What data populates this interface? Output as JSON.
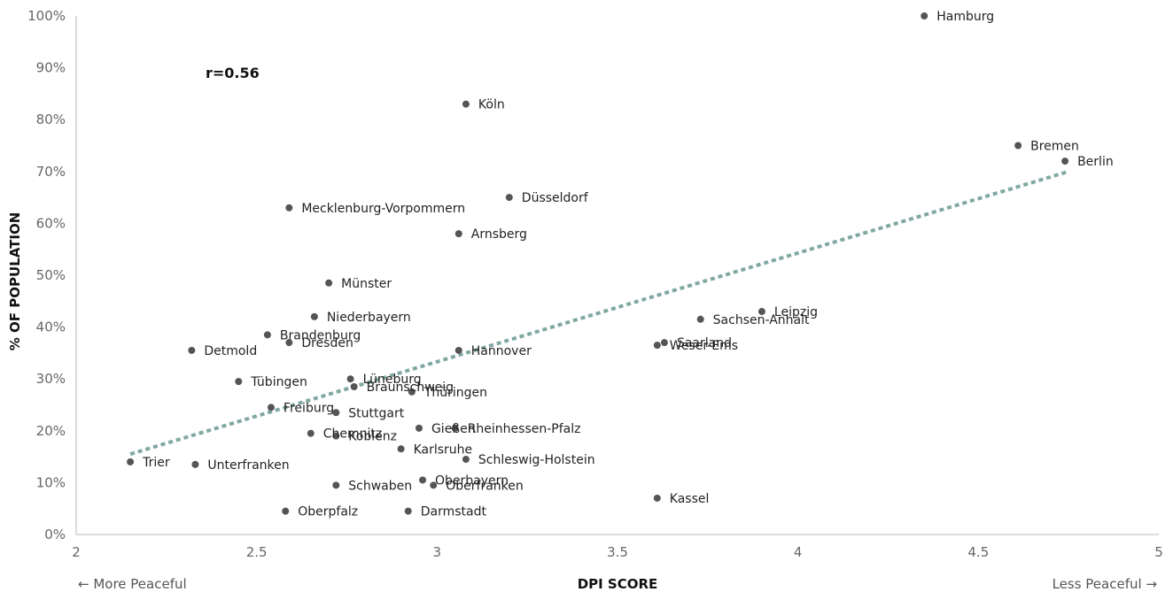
{
  "chart_data": {
    "type": "scatter",
    "xlabel": "DPI SCORE",
    "ylabel": "% OF POPULATION",
    "xlim": [
      2,
      5
    ],
    "ylim": [
      0,
      100
    ],
    "x_ticks": [
      "2",
      "2.5",
      "3",
      "3.5",
      "4",
      "4.5",
      "5"
    ],
    "y_ticks": [
      "0%",
      "10%",
      "20%",
      "30%",
      "40%",
      "50%",
      "60%",
      "70%",
      "80%",
      "90%",
      "100%"
    ],
    "annotation": "r=0.56",
    "left_direction_label": "← More Peaceful",
    "right_direction_label": "Less Peaceful →",
    "point_color": "#555555",
    "trend_color": "#7fa8a3",
    "grid": false,
    "trendline": {
      "x": [
        2.15,
        4.75
      ],
      "y": [
        15.5,
        70
      ]
    },
    "points": [
      {
        "label": "Hamburg",
        "x": 4.35,
        "y": 100
      },
      {
        "label": "Köln",
        "x": 3.08,
        "y": 83
      },
      {
        "label": "Bremen",
        "x": 4.61,
        "y": 75
      },
      {
        "label": "Berlin",
        "x": 4.74,
        "y": 72
      },
      {
        "label": "Düsseldorf",
        "x": 3.2,
        "y": 65
      },
      {
        "label": "Mecklenburg-Vorpommern",
        "x": 2.59,
        "y": 63
      },
      {
        "label": "Arnsberg",
        "x": 3.06,
        "y": 58
      },
      {
        "label": "Münster",
        "x": 2.7,
        "y": 48.5
      },
      {
        "label": "Leipzig",
        "x": 3.9,
        "y": 43
      },
      {
        "label": "Niederbayern",
        "x": 2.66,
        "y": 42
      },
      {
        "label": "Sachsen-Anhalt",
        "x": 3.73,
        "y": 41.5
      },
      {
        "label": "Brandenburg",
        "x": 2.53,
        "y": 38.5
      },
      {
        "label": "Saarland",
        "x": 3.63,
        "y": 37
      },
      {
        "label": "Dresden",
        "x": 2.59,
        "y": 37
      },
      {
        "label": "Weser-Ems",
        "x": 3.61,
        "y": 36.5
      },
      {
        "label": "Detmold",
        "x": 2.32,
        "y": 35.5
      },
      {
        "label": "Hannover",
        "x": 3.06,
        "y": 35.5
      },
      {
        "label": "Lüneburg",
        "x": 2.76,
        "y": 30
      },
      {
        "label": "Tübingen",
        "x": 2.45,
        "y": 29.5
      },
      {
        "label": "Braunschweig",
        "x": 2.77,
        "y": 28.5
      },
      {
        "label": "Thüringen",
        "x": 2.93,
        "y": 27.5
      },
      {
        "label": "Freiburg",
        "x": 2.54,
        "y": 24.5
      },
      {
        "label": "Stuttgart",
        "x": 2.72,
        "y": 23.5
      },
      {
        "label": "Gießen",
        "x": 2.95,
        "y": 20.5
      },
      {
        "label": "Rheinhessen-Pfalz",
        "x": 3.05,
        "y": 20.5
      },
      {
        "label": "Chemnitz",
        "x": 2.65,
        "y": 19.5
      },
      {
        "label": "Koblenz",
        "x": 2.72,
        "y": 19
      },
      {
        "label": "Karlsruhe",
        "x": 2.9,
        "y": 16.5
      },
      {
        "label": "Schleswig-Holstein",
        "x": 3.08,
        "y": 14.5
      },
      {
        "label": "Trier",
        "x": 2.15,
        "y": 14
      },
      {
        "label": "Unterfranken",
        "x": 2.33,
        "y": 13.5
      },
      {
        "label": "Oberbayern",
        "x": 2.96,
        "y": 10.5
      },
      {
        "label": "Schwaben",
        "x": 2.72,
        "y": 9.5
      },
      {
        "label": "Oberfranken",
        "x": 2.99,
        "y": 9.5
      },
      {
        "label": "Kassel",
        "x": 3.61,
        "y": 7
      },
      {
        "label": "Oberpfalz",
        "x": 2.58,
        "y": 4.5
      },
      {
        "label": "Darmstadt",
        "x": 2.92,
        "y": 4.5
      }
    ]
  }
}
